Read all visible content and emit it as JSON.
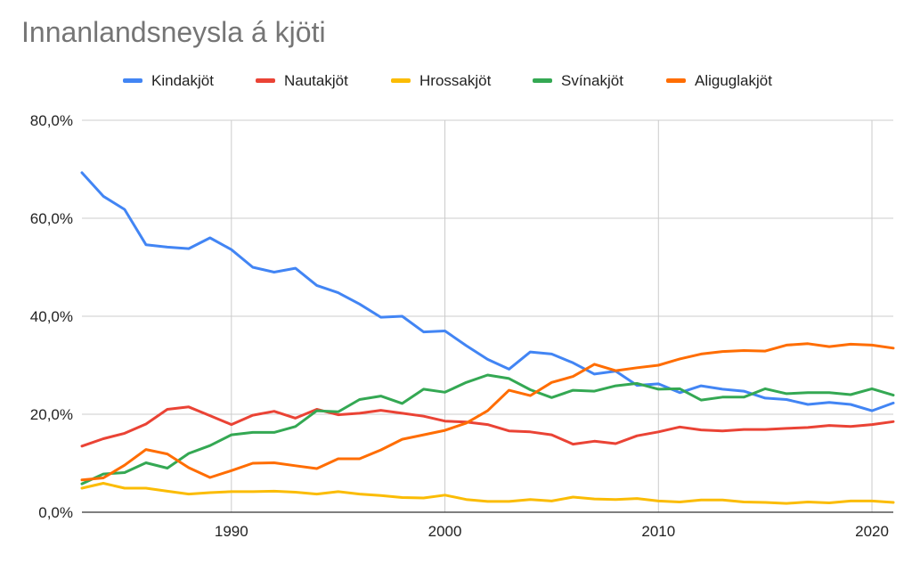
{
  "chart_data": {
    "type": "line",
    "title": "Innanlandsneysla á kjöti",
    "xlabel": "",
    "ylabel": "",
    "xlim": [
      1983,
      2021
    ],
    "ylim": [
      0,
      80
    ],
    "y_ticks": [
      "0,0%",
      "20,0%",
      "40,0%",
      "60,0%",
      "80,0%"
    ],
    "y_tick_values": [
      0,
      20,
      40,
      60,
      80
    ],
    "x_ticks": [
      "1990",
      "2000",
      "2010",
      "2020"
    ],
    "x_tick_values": [
      1990,
      2000,
      2010,
      2020
    ],
    "grid": true,
    "legend_position": "top",
    "x": [
      1983,
      1984,
      1985,
      1986,
      1987,
      1988,
      1989,
      1990,
      1991,
      1992,
      1993,
      1994,
      1995,
      1996,
      1997,
      1998,
      1999,
      2000,
      2001,
      2002,
      2003,
      2004,
      2005,
      2006,
      2007,
      2008,
      2009,
      2010,
      2011,
      2012,
      2013,
      2014,
      2015,
      2016,
      2017,
      2018,
      2019,
      2020,
      2021
    ],
    "series": [
      {
        "name": "Kindakjöt",
        "color": "#4285f4",
        "values": [
          69.3,
          64.5,
          61.8,
          54.6,
          54.1,
          53.8,
          56.0,
          53.6,
          50.0,
          49.0,
          49.8,
          46.3,
          44.8,
          42.5,
          39.8,
          40.0,
          36.8,
          37.0,
          34.0,
          31.2,
          29.2,
          32.7,
          32.3,
          30.5,
          28.2,
          28.8,
          25.9,
          26.2,
          24.4,
          25.8,
          25.1,
          24.7,
          23.3,
          23.0,
          22.0,
          22.4,
          22.0,
          20.7,
          22.3
        ]
      },
      {
        "name": "Nautakjöt",
        "color": "#ea4335",
        "values": [
          13.5,
          15.0,
          16.1,
          18.0,
          21.0,
          21.5,
          19.7,
          17.9,
          19.8,
          20.6,
          19.2,
          21.0,
          19.9,
          20.2,
          20.8,
          20.2,
          19.6,
          18.6,
          18.4,
          17.9,
          16.6,
          16.4,
          15.8,
          13.9,
          14.5,
          14.0,
          15.6,
          16.4,
          17.4,
          16.8,
          16.6,
          16.9,
          16.9,
          17.1,
          17.3,
          17.7,
          17.5,
          17.9,
          18.5
        ]
      },
      {
        "name": "Hrossakjöt",
        "color": "#fbbc04",
        "values": [
          4.9,
          5.9,
          4.9,
          4.9,
          4.3,
          3.7,
          4.0,
          4.2,
          4.2,
          4.3,
          4.1,
          3.7,
          4.2,
          3.7,
          3.4,
          3.0,
          2.9,
          3.5,
          2.6,
          2.2,
          2.2,
          2.6,
          2.3,
          3.1,
          2.7,
          2.6,
          2.8,
          2.3,
          2.1,
          2.5,
          2.5,
          2.1,
          2.0,
          1.8,
          2.1,
          1.9,
          2.3,
          2.3,
          2.0
        ]
      },
      {
        "name": "Svínakjöt",
        "color": "#34a853",
        "values": [
          5.8,
          7.8,
          8.1,
          10.1,
          9.0,
          12.0,
          13.6,
          15.8,
          16.3,
          16.3,
          17.5,
          20.7,
          20.5,
          23.0,
          23.7,
          22.2,
          25.1,
          24.5,
          26.5,
          28.0,
          27.3,
          25.0,
          23.4,
          24.9,
          24.7,
          25.8,
          26.3,
          25.1,
          25.2,
          22.9,
          23.5,
          23.5,
          25.2,
          24.2,
          24.4,
          24.4,
          24.0,
          25.2,
          23.9
        ]
      },
      {
        "name": "Aliguglakjöt",
        "color": "#ff6d01",
        "values": [
          6.6,
          7.0,
          9.6,
          12.8,
          11.9,
          9.1,
          7.1,
          8.5,
          10.0,
          10.1,
          9.5,
          8.9,
          10.9,
          10.9,
          12.7,
          14.9,
          15.8,
          16.7,
          18.2,
          20.7,
          24.9,
          23.8,
          26.5,
          27.7,
          30.2,
          28.9,
          29.5,
          30.0,
          31.3,
          32.3,
          32.8,
          33.0,
          32.9,
          34.1,
          34.4,
          33.8,
          34.3,
          34.1,
          33.5
        ]
      }
    ]
  }
}
